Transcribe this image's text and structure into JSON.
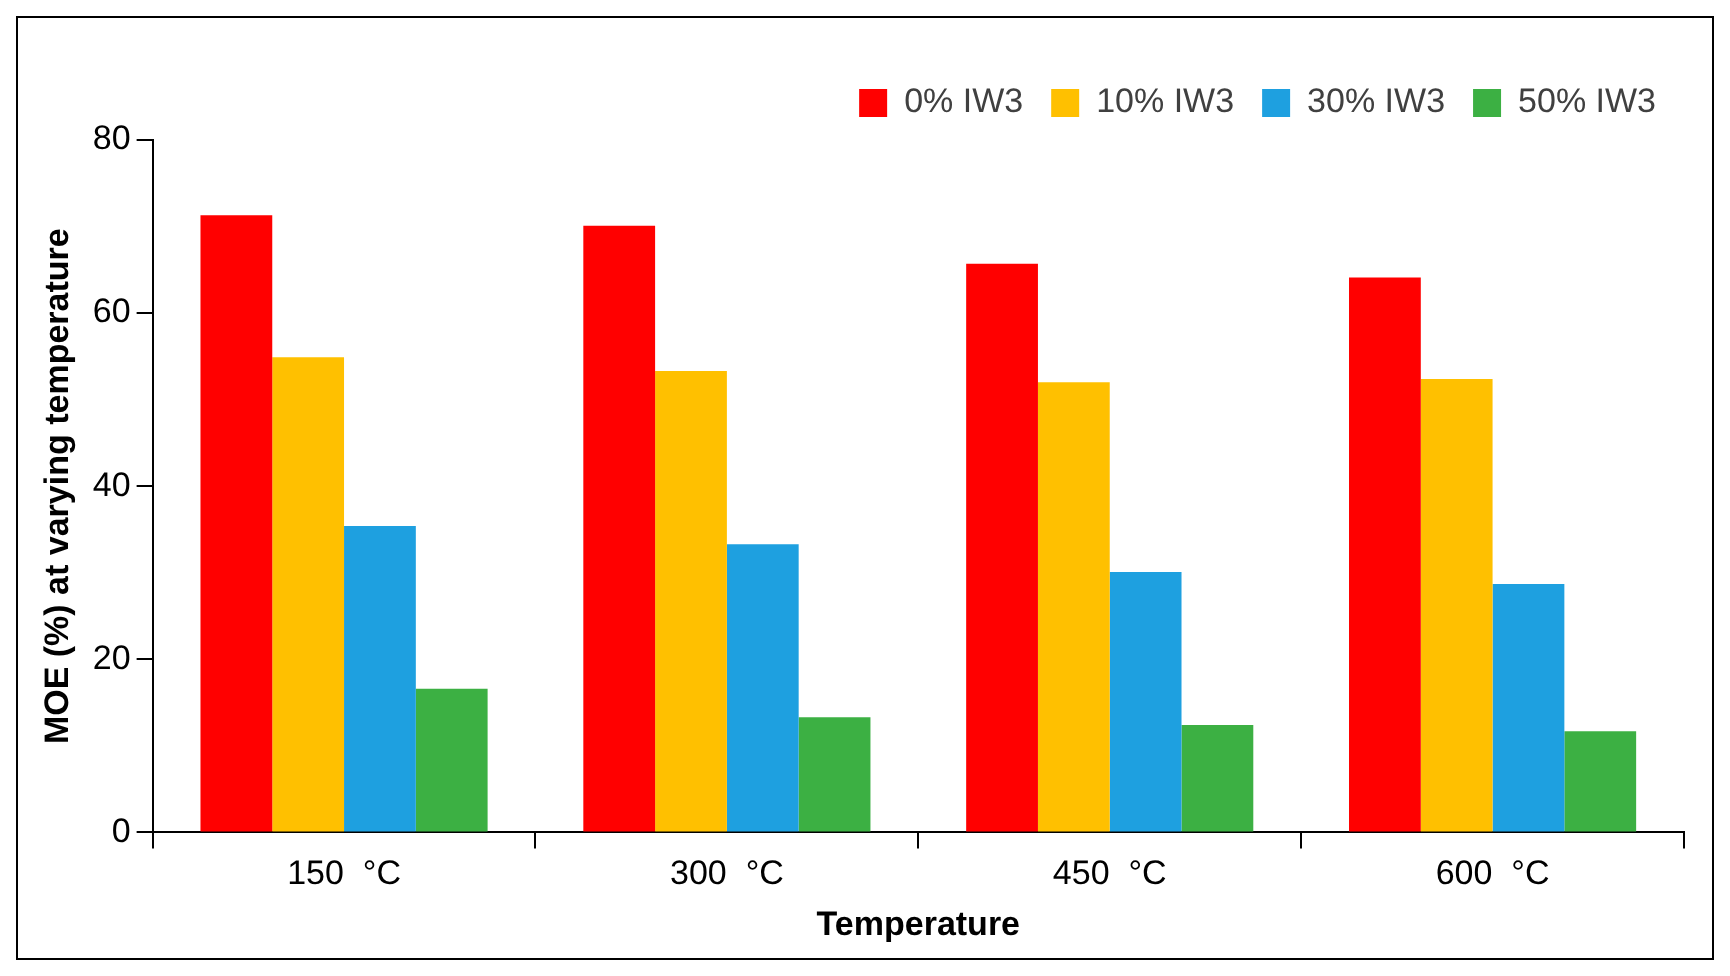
{
  "chart_data": {
    "type": "bar",
    "xlabel": "Temperature",
    "ylabel": "MOE (%) at varying temperature",
    "categories": [
      "150  °C",
      "300  °C",
      "450  °C",
      "600  °C"
    ],
    "series": [
      {
        "name": "0% IW3",
        "color": "#ff0000",
        "values": [
          71.3,
          70.1,
          65.7,
          64.1
        ]
      },
      {
        "name": "10% IW3",
        "color": "#ffc000",
        "values": [
          54.9,
          53.3,
          52.0,
          52.4
        ]
      },
      {
        "name": "30% IW3",
        "color": "#1ea0e0",
        "values": [
          35.4,
          33.3,
          30.1,
          28.7
        ]
      },
      {
        "name": "50% IW3",
        "color": "#3cb043",
        "values": [
          16.6,
          13.3,
          12.4,
          11.7
        ]
      }
    ],
    "ylim": [
      0,
      80
    ],
    "yticks": [
      0,
      20,
      40,
      60,
      80
    ],
    "grid": false,
    "legend": "top right"
  }
}
